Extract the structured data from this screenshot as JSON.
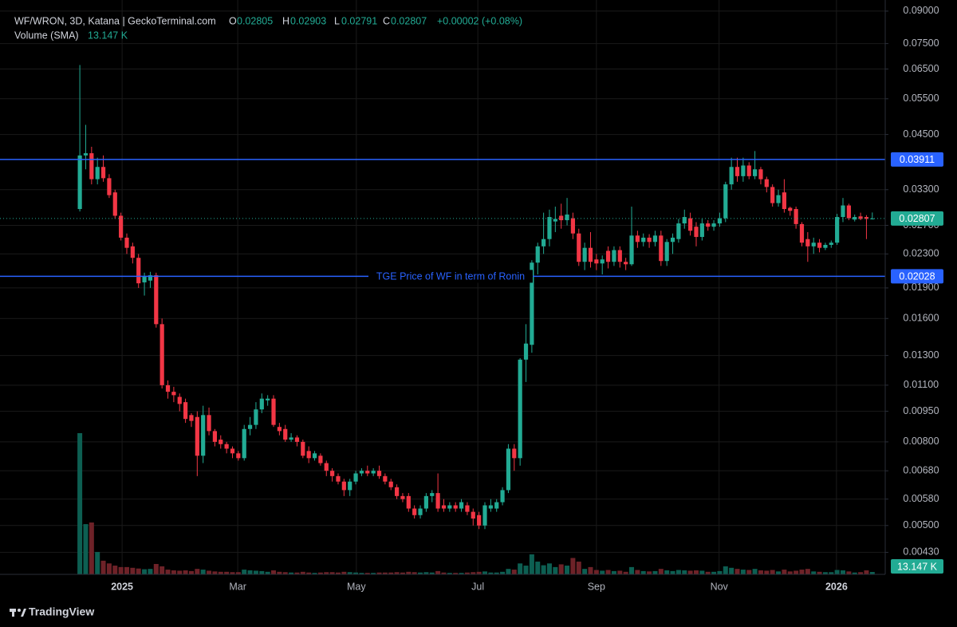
{
  "chart_data": {
    "type": "candlestick",
    "title": "WF/WRON, 3D, Katana | GeckoTerminal.com",
    "ohlc_letters": [
      "O",
      "H",
      "L",
      "C"
    ],
    "change": "+0.00002 (+0.08%)",
    "log_scale": true,
    "grid": true,
    "up_color": "#22ab94",
    "down_color": "#f23645",
    "open": [
      0.0296,
      0.04,
      0.0405,
      0.035,
      0.0375,
      0.0352,
      0.0325,
      0.0285,
      0.0252,
      0.024,
      0.0225,
      0.0196,
      0.0198,
      0.0204,
      0.0155,
      0.011,
      0.0106,
      0.0103,
      0.01,
      0.0093,
      0.0092,
      0.0074,
      0.0093,
      0.0085,
      0.0081,
      0.0079,
      0.0077,
      0.0075,
      0.0073,
      0.0086,
      0.0088,
      0.0096,
      0.0101,
      0.0102,
      0.0087,
      0.0086,
      0.0081,
      0.0082,
      0.008,
      0.0076,
      0.0073,
      0.0074,
      0.0071,
      0.0068,
      0.0066,
      0.0064,
      0.0061,
      0.0064,
      0.0067,
      0.0068,
      0.0067,
      0.0068,
      0.0066,
      0.0064,
      0.0062,
      0.0059,
      0.0059,
      0.0055,
      0.0053,
      0.0055,
      0.0059,
      0.006,
      0.0056,
      0.0055,
      0.0056,
      0.0055,
      0.0056,
      0.0054,
      0.0053,
      0.005,
      0.0055,
      0.0055,
      0.0057,
      0.0061,
      0.0077,
      0.0073,
      0.0127,
      0.0138,
      0.0219,
      0.024,
      0.025,
      0.0276,
      0.0285,
      0.0278,
      0.0281,
      0.0258,
      0.022,
      0.0238,
      0.0223,
      0.0218,
      0.0234,
      0.022,
      0.0235,
      0.022,
      0.0217,
      0.0255,
      0.0246,
      0.0252,
      0.0246,
      0.0255,
      0.0221,
      0.0246,
      0.025,
      0.0273,
      0.0281,
      0.0268,
      0.0253,
      0.0273,
      0.0268,
      0.0273,
      0.0281,
      0.034,
      0.0375,
      0.0356,
      0.0378,
      0.0356,
      0.037,
      0.035,
      0.0335,
      0.0306,
      0.0325,
      0.0298,
      0.0296,
      0.0272,
      0.025,
      0.024,
      0.0245,
      0.0238,
      0.0242,
      0.0245,
      0.0283,
      0.0302,
      0.0279,
      0.0284,
      0.0283,
      0.02805
    ],
    "high": [
      0.0665,
      0.0475,
      0.042,
      0.0395,
      0.04,
      0.036,
      0.033,
      0.029,
      0.0258,
      0.0245,
      0.023,
      0.0207,
      0.0208,
      0.0207,
      0.016,
      0.0113,
      0.0109,
      0.0105,
      0.0102,
      0.0094,
      0.0095,
      0.0098,
      0.0097,
      0.0086,
      0.0083,
      0.008,
      0.0078,
      0.0076,
      0.0088,
      0.0092,
      0.01,
      0.0105,
      0.0104,
      0.0104,
      0.0089,
      0.0088,
      0.0084,
      0.0083,
      0.0081,
      0.0078,
      0.0076,
      0.0075,
      0.0072,
      0.0069,
      0.0067,
      0.0065,
      0.0065,
      0.0068,
      0.0069,
      0.007,
      0.0069,
      0.007,
      0.0067,
      0.0065,
      0.0063,
      0.006,
      0.006,
      0.0056,
      0.0056,
      0.006,
      0.0061,
      0.0067,
      0.0058,
      0.0057,
      0.0057,
      0.0058,
      0.0057,
      0.0055,
      0.0054,
      0.0057,
      0.0058,
      0.0058,
      0.0062,
      0.0079,
      0.0079,
      0.0128,
      0.0155,
      0.0222,
      0.0245,
      0.029,
      0.0295,
      0.03,
      0.0305,
      0.0315,
      0.029,
      0.0265,
      0.0245,
      0.026,
      0.023,
      0.0228,
      0.024,
      0.024,
      0.024,
      0.0225,
      0.03,
      0.0262,
      0.0258,
      0.0257,
      0.0262,
      0.0262,
      0.025,
      0.0258,
      0.028,
      0.0295,
      0.029,
      0.0275,
      0.028,
      0.0278,
      0.0278,
      0.029,
      0.0345,
      0.0395,
      0.0395,
      0.0395,
      0.0385,
      0.041,
      0.0375,
      0.0355,
      0.034,
      0.033,
      0.035,
      0.03,
      0.03,
      0.0275,
      0.026,
      0.0252,
      0.025,
      0.0245,
      0.0248,
      0.0288,
      0.0315,
      0.0305,
      0.0287,
      0.029,
      0.0286,
      0.02903
    ],
    "low": [
      0.0292,
      0.037,
      0.034,
      0.034,
      0.0345,
      0.0315,
      0.028,
      0.0248,
      0.023,
      0.0218,
      0.019,
      0.0182,
      0.019,
      0.0152,
      0.0108,
      0.0102,
      0.01,
      0.0095,
      0.0089,
      0.0087,
      0.0066,
      0.0071,
      0.0083,
      0.0078,
      0.0077,
      0.0075,
      0.0073,
      0.0072,
      0.0072,
      0.0083,
      0.0086,
      0.0094,
      0.0098,
      0.0087,
      0.0083,
      0.008,
      0.008,
      0.0078,
      0.0073,
      0.0071,
      0.0072,
      0.007,
      0.0066,
      0.0064,
      0.0063,
      0.0059,
      0.0059,
      0.0063,
      0.0066,
      0.0066,
      0.0066,
      0.0065,
      0.0063,
      0.0061,
      0.0058,
      0.0057,
      0.0054,
      0.0052,
      0.0052,
      0.0054,
      0.0057,
      0.0054,
      0.0054,
      0.0054,
      0.0054,
      0.0054,
      0.0053,
      0.005,
      0.0049,
      0.0049,
      0.0054,
      0.0054,
      0.0056,
      0.006,
      0.0068,
      0.007,
      0.0112,
      0.0132,
      0.0205,
      0.023,
      0.024,
      0.026,
      0.0265,
      0.027,
      0.025,
      0.0215,
      0.021,
      0.0213,
      0.021,
      0.0205,
      0.0212,
      0.0215,
      0.0213,
      0.021,
      0.0215,
      0.0238,
      0.024,
      0.0238,
      0.024,
      0.0215,
      0.0215,
      0.023,
      0.0245,
      0.0265,
      0.0255,
      0.024,
      0.0248,
      0.0262,
      0.0262,
      0.0268,
      0.0275,
      0.033,
      0.0345,
      0.0345,
      0.035,
      0.035,
      0.034,
      0.0325,
      0.03,
      0.03,
      0.029,
      0.0285,
      0.0265,
      0.024,
      0.022,
      0.023,
      0.0232,
      0.0235,
      0.0238,
      0.0242,
      0.0275,
      0.0278,
      0.0276,
      0.0278,
      0.025,
      0.02791
    ],
    "close": [
      0.04,
      0.0405,
      0.035,
      0.0375,
      0.0352,
      0.032,
      0.0285,
      0.0252,
      0.0238,
      0.0225,
      0.0195,
      0.0203,
      0.0204,
      0.0155,
      0.011,
      0.0106,
      0.0104,
      0.0099,
      0.0091,
      0.009,
      0.0074,
      0.0093,
      0.0085,
      0.008,
      0.0079,
      0.0077,
      0.0075,
      0.0073,
      0.0086,
      0.0088,
      0.0096,
      0.0102,
      0.0102,
      0.0088,
      0.0085,
      0.0081,
      0.0082,
      0.008,
      0.0074,
      0.0073,
      0.0075,
      0.0071,
      0.0068,
      0.0066,
      0.0064,
      0.0061,
      0.0064,
      0.0067,
      0.0068,
      0.0067,
      0.0068,
      0.0066,
      0.0064,
      0.0062,
      0.0059,
      0.0058,
      0.0055,
      0.0053,
      0.0055,
      0.0059,
      0.006,
      0.0055,
      0.0055,
      0.0056,
      0.0055,
      0.0057,
      0.0054,
      0.0052,
      0.005,
      0.0056,
      0.0056,
      0.0057,
      0.0061,
      0.0077,
      0.0073,
      0.0127,
      0.0139,
      0.0219,
      0.024,
      0.025,
      0.0283,
      0.028,
      0.0278,
      0.0287,
      0.0258,
      0.022,
      0.0238,
      0.022,
      0.0218,
      0.0223,
      0.022,
      0.0235,
      0.022,
      0.0217,
      0.0255,
      0.0246,
      0.0252,
      0.0246,
      0.0255,
      0.0221,
      0.0246,
      0.0252,
      0.0273,
      0.0283,
      0.0262,
      0.0253,
      0.0273,
      0.0268,
      0.0273,
      0.0281,
      0.034,
      0.0375,
      0.0356,
      0.0378,
      0.0356,
      0.037,
      0.035,
      0.0335,
      0.0306,
      0.032,
      0.0296,
      0.0293,
      0.0272,
      0.0245,
      0.024,
      0.0245,
      0.0238,
      0.0242,
      0.0245,
      0.0283,
      0.0302,
      0.0281,
      0.0283,
      0.028,
      0.028,
      0.02807
    ],
    "volume": {
      "name": "Volume (SMA)",
      "last_label": "13.147 K",
      "values": [
        776,
        276,
        285,
        123,
        75,
        60,
        48,
        40,
        40,
        36,
        32,
        28,
        30,
        57,
        44,
        26,
        22,
        20,
        22,
        18,
        30,
        26,
        20,
        16,
        14,
        14,
        12,
        12,
        26,
        22,
        20,
        18,
        14,
        22,
        14,
        12,
        10,
        10,
        14,
        10,
        8,
        10,
        12,
        12,
        10,
        14,
        12,
        10,
        8,
        8,
        8,
        10,
        10,
        10,
        12,
        10,
        14,
        12,
        10,
        12,
        10,
        18,
        10,
        8,
        8,
        8,
        10,
        12,
        14,
        16,
        10,
        10,
        14,
        30,
        26,
        60,
        48,
        110,
        70,
        50,
        60,
        40,
        55,
        48,
        90,
        70,
        30,
        40,
        24,
        20,
        24,
        18,
        20,
        14,
        40,
        24,
        18,
        16,
        18,
        30,
        22,
        18,
        24,
        22,
        20,
        22,
        20,
        14,
        14,
        18,
        44,
        36,
        30,
        26,
        24,
        30,
        22,
        20,
        24,
        16,
        26,
        16,
        20,
        26,
        30,
        16,
        14,
        12,
        12,
        24,
        22,
        16,
        10,
        12,
        22,
        13.147
      ]
    },
    "hlines": [
      {
        "value": 0.03911
      },
      {
        "value": 0.02028,
        "label": "TGE Price of WF in term of Ronin"
      }
    ],
    "hline_color": "#2962ff",
    "xlim": [
      -13.6,
      137.2
    ],
    "xticks": [
      {
        "value": 7.2,
        "label": "2025"
      },
      {
        "value": 26.9,
        "label": "Mar"
      },
      {
        "value": 47.1,
        "label": "May"
      },
      {
        "value": 67.8,
        "label": "Jul"
      },
      {
        "value": 88.0,
        "label": "Sep"
      },
      {
        "value": 108.9,
        "label": "Nov"
      },
      {
        "value": 128.9,
        "label": "2026"
      }
    ],
    "ylim": [
      0.0038,
      0.0958
    ],
    "yticks": [
      {
        "value": 0.09,
        "label": "0.09000"
      },
      {
        "value": 0.075,
        "label": "0.07500"
      },
      {
        "value": 0.065,
        "label": "0.06500"
      },
      {
        "value": 0.055,
        "label": "0.05500"
      },
      {
        "value": 0.045,
        "label": "0.04500"
      },
      {
        "value": 0.033,
        "label": "0.03300"
      },
      {
        "value": 0.027,
        "label": "0.02700"
      },
      {
        "value": 0.023,
        "label": "0.02300"
      },
      {
        "value": 0.019,
        "label": "0.01900"
      },
      {
        "value": 0.016,
        "label": "0.01600"
      },
      {
        "value": 0.013,
        "label": "0.01300"
      },
      {
        "value": 0.011,
        "label": "0.01100"
      },
      {
        "value": 0.0095,
        "label": "0.00950"
      },
      {
        "value": 0.008,
        "label": "0.00800"
      },
      {
        "value": 0.0068,
        "label": "0.00680"
      },
      {
        "value": 0.0058,
        "label": "0.00580"
      },
      {
        "value": 0.005,
        "label": "0.00500"
      },
      {
        "value": 0.0043,
        "label": "0.00430"
      }
    ],
    "footer": "TradingView"
  }
}
